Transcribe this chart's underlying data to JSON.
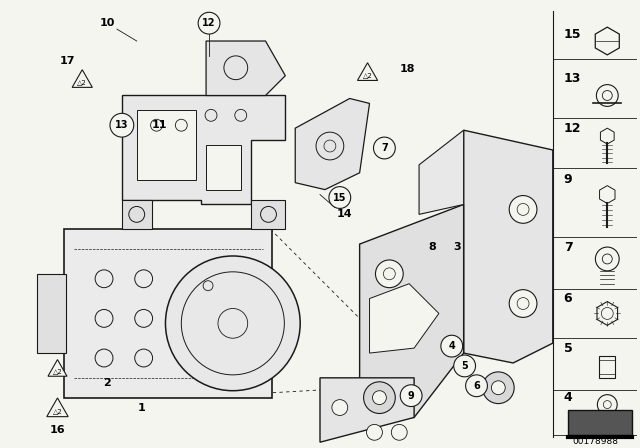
{
  "bg_color": "#f5f5f0",
  "figure_width": 6.4,
  "figure_height": 4.48,
  "dpi": 100,
  "line_color": "#1a1a1a",
  "text_color": "#000000",
  "watermark": "00178988"
}
